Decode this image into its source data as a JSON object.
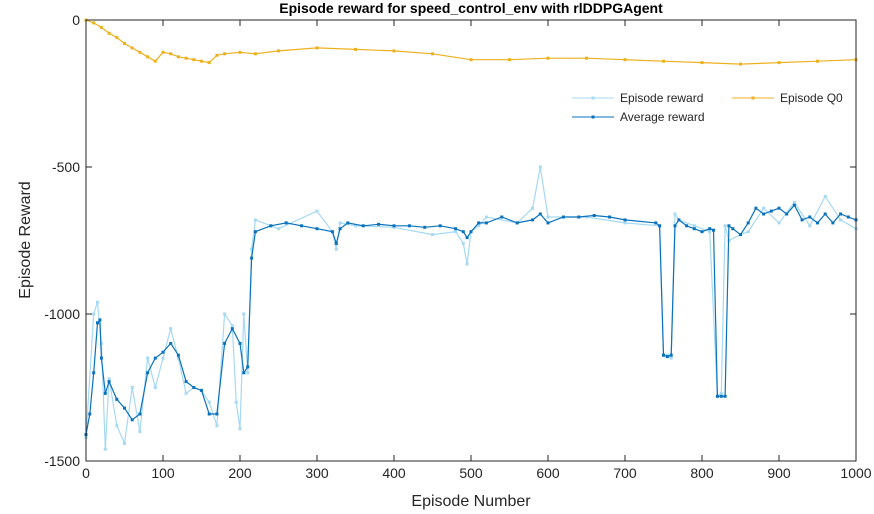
{
  "chart_data": {
    "type": "line",
    "title": "Episode reward for speed_control_env with rlDDPGAgent",
    "xlabel": "Episode Number",
    "ylabel": "Episode Reward",
    "xlim": [
      0,
      1000
    ],
    "ylim": [
      -1500,
      0
    ],
    "x_ticks": [
      0,
      100,
      200,
      300,
      400,
      500,
      600,
      700,
      800,
      900,
      1000
    ],
    "y_ticks": [
      0,
      -500,
      -1000,
      -1500
    ],
    "x_tick_labels": [
      "0",
      "100",
      "200",
      "300",
      "400",
      "500",
      "600",
      "700",
      "800",
      "900",
      "1000"
    ],
    "y_tick_labels": [
      "0",
      "-500",
      "-1000",
      "-1500"
    ],
    "grid": false,
    "legend_position": "top-right",
    "legend": {
      "episode_reward": "Episode reward",
      "average_reward": "Average reward",
      "episode_q0": "Episode Q0"
    },
    "series": [
      {
        "name": "Episode reward",
        "color": "#a6d9f3",
        "x": [
          0,
          10,
          15,
          20,
          25,
          30,
          40,
          50,
          60,
          70,
          80,
          90,
          100,
          110,
          120,
          130,
          140,
          150,
          160,
          170,
          180,
          190,
          195,
          200,
          205,
          210,
          215,
          220,
          250,
          300,
          320,
          325,
          330,
          350,
          400,
          450,
          480,
          490,
          495,
          500,
          510,
          520,
          560,
          580,
          590,
          600,
          650,
          700,
          745,
          750,
          755,
          760,
          765,
          770,
          790,
          810,
          820,
          825,
          830,
          835,
          850,
          860,
          880,
          900,
          920,
          940,
          960,
          980,
          1000
        ],
        "values": [
          -1420,
          -1000,
          -960,
          -1100,
          -1460,
          -1220,
          -1380,
          -1440,
          -1250,
          -1400,
          -1150,
          -1250,
          -1150,
          -1050,
          -1150,
          -1270,
          -1250,
          -1260,
          -1300,
          -1380,
          -1000,
          -1040,
          -1300,
          -1390,
          -1000,
          -1200,
          -780,
          -680,
          -710,
          -650,
          -720,
          -780,
          -690,
          -700,
          -705,
          -730,
          -720,
          -760,
          -830,
          -720,
          -700,
          -670,
          -690,
          -640,
          -500,
          -670,
          -670,
          -690,
          -700,
          -1140,
          -1140,
          -1150,
          -660,
          -680,
          -700,
          -720,
          -1280,
          -1270,
          -700,
          -750,
          -730,
          -720,
          -640,
          -690,
          -620,
          -700,
          -600,
          -680,
          -710
        ]
      },
      {
        "name": "Average reward",
        "color": "#0a72bd",
        "x": [
          0,
          5,
          10,
          15,
          18,
          20,
          25,
          30,
          40,
          50,
          60,
          70,
          80,
          90,
          100,
          110,
          120,
          130,
          140,
          150,
          160,
          170,
          180,
          190,
          200,
          205,
          210,
          215,
          220,
          240,
          260,
          280,
          300,
          320,
          325,
          330,
          340,
          360,
          380,
          400,
          420,
          440,
          460,
          480,
          490,
          495,
          500,
          510,
          520,
          540,
          560,
          580,
          590,
          600,
          620,
          640,
          660,
          680,
          700,
          740,
          745,
          750,
          755,
          760,
          765,
          770,
          780,
          790,
          800,
          810,
          815,
          820,
          825,
          830,
          835,
          840,
          850,
          860,
          870,
          880,
          890,
          900,
          910,
          920,
          930,
          940,
          950,
          960,
          970,
          980,
          990,
          1000
        ],
        "values": [
          -1410,
          -1340,
          -1200,
          -1030,
          -1020,
          -1150,
          -1270,
          -1230,
          -1290,
          -1320,
          -1360,
          -1340,
          -1200,
          -1150,
          -1130,
          -1100,
          -1140,
          -1230,
          -1250,
          -1260,
          -1340,
          -1340,
          -1100,
          -1050,
          -1100,
          -1200,
          -1180,
          -810,
          -720,
          -700,
          -690,
          -700,
          -710,
          -720,
          -760,
          -710,
          -690,
          -700,
          -695,
          -700,
          -700,
          -705,
          -700,
          -710,
          -720,
          -740,
          -720,
          -690,
          -690,
          -670,
          -690,
          -680,
          -660,
          -690,
          -670,
          -670,
          -665,
          -670,
          -680,
          -690,
          -700,
          -1140,
          -1145,
          -1140,
          -700,
          -680,
          -700,
          -710,
          -720,
          -710,
          -715,
          -1280,
          -1280,
          -1280,
          -700,
          -710,
          -730,
          -690,
          -640,
          -660,
          -650,
          -640,
          -660,
          -630,
          -680,
          -670,
          -690,
          -660,
          -690,
          -660,
          -670,
          -680
        ]
      },
      {
        "name": "Episode Q0",
        "color": "#edb120",
        "x": [
          0,
          10,
          20,
          30,
          40,
          50,
          60,
          70,
          80,
          90,
          100,
          110,
          120,
          130,
          140,
          150,
          160,
          170,
          180,
          200,
          220,
          250,
          300,
          350,
          400,
          450,
          500,
          550,
          600,
          650,
          700,
          750,
          800,
          850,
          900,
          950,
          1000
        ],
        "values": [
          0,
          -10,
          -25,
          -45,
          -60,
          -80,
          -95,
          -110,
          -125,
          -140,
          -110,
          -115,
          -125,
          -130,
          -135,
          -140,
          -145,
          -120,
          -115,
          -110,
          -115,
          -105,
          -95,
          -100,
          -105,
          -115,
          -135,
          -135,
          -130,
          -130,
          -135,
          -140,
          -145,
          -150,
          -145,
          -140,
          -135
        ]
      }
    ]
  }
}
